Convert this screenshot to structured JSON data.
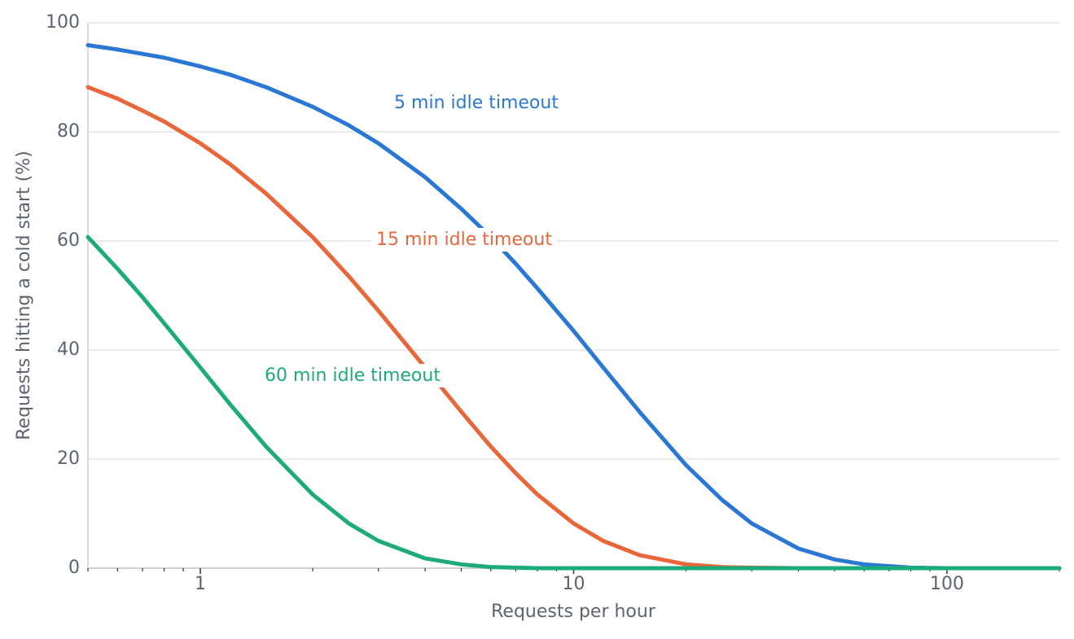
{
  "chart_data": {
    "type": "line",
    "x_label": "Requests per hour",
    "y_label": "Requests hitting a cold start (%)",
    "x_scale": "log",
    "grid": true,
    "xlim": [
      0.5,
      200
    ],
    "ylim": [
      0,
      100
    ],
    "xticks": [
      1,
      10,
      100
    ],
    "xticks_minor": [
      0.5,
      0.6,
      0.7,
      0.8,
      0.9,
      2,
      3,
      4,
      5,
      6,
      7,
      8,
      9,
      20,
      30,
      40,
      50,
      60,
      70,
      80,
      90,
      200
    ],
    "yticks": [
      0,
      20,
      40,
      60,
      80,
      100
    ],
    "x": [
      0.5,
      0.6,
      0.7,
      0.8,
      1,
      1.2,
      1.5,
      2,
      2.5,
      3,
      4,
      5,
      6,
      7,
      8,
      10,
      12,
      15,
      20,
      25,
      30,
      40,
      50,
      60,
      80,
      100,
      150,
      200
    ],
    "series": [
      {
        "name": "5 min idle timeout",
        "color": "#2b78d4",
        "values": [
          95.9,
          95.1,
          94.3,
          93.6,
          92.0,
          90.5,
          88.2,
          84.6,
          81.2,
          77.9,
          71.7,
          65.9,
          60.7,
          55.8,
          51.3,
          43.5,
          36.8,
          28.7,
          18.9,
          12.5,
          8.2,
          3.6,
          1.6,
          0.7,
          0.1,
          0.0,
          0.0,
          0.0
        ]
      },
      {
        "name": "15 min idle timeout",
        "color": "#e8663a",
        "values": [
          88.2,
          86.1,
          83.9,
          81.9,
          77.9,
          74.1,
          68.7,
          60.7,
          53.5,
          47.2,
          36.8,
          28.7,
          22.3,
          17.4,
          13.5,
          8.2,
          5.0,
          2.4,
          0.7,
          0.2,
          0.1,
          0.0,
          0.0,
          0.0,
          0.0,
          0.0,
          0.0,
          0.0
        ]
      },
      {
        "name": "60 min idle timeout",
        "color": "#1eab7a",
        "values": [
          60.7,
          54.9,
          49.7,
          44.9,
          36.8,
          30.1,
          22.3,
          13.5,
          8.2,
          5.0,
          1.8,
          0.7,
          0.2,
          0.1,
          0.0,
          0.0,
          0.0,
          0.0,
          0.0,
          0.0,
          0.0,
          0.0,
          0.0,
          0.0,
          0.0,
          0.0,
          0.0,
          0.0
        ]
      }
    ]
  }
}
